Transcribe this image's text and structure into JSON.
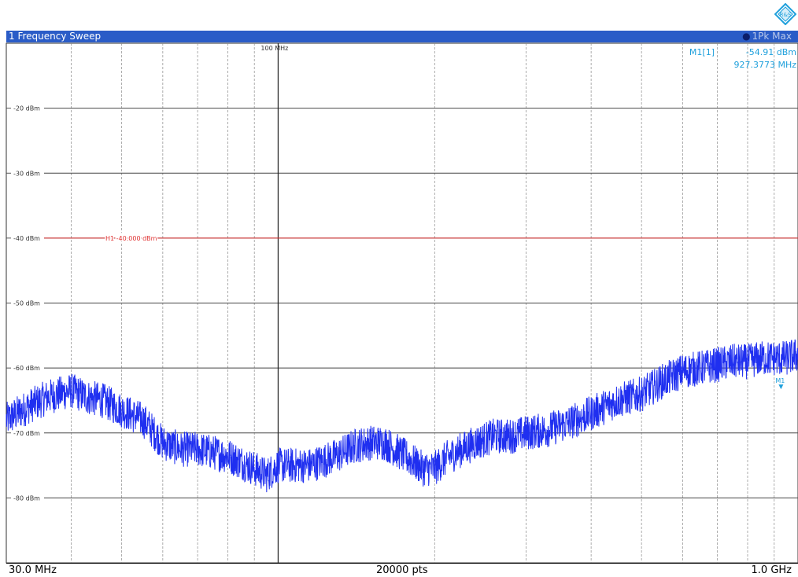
{
  "header": {
    "title": "1 Frequency Sweep",
    "trace_label": "1Pk Max",
    "logo_text": "R&S"
  },
  "marker_readout": {
    "name": "M1[1]",
    "level": "-54.91 dBm",
    "frequency": "927.3773 MHz"
  },
  "footer": {
    "start": "30.0 MHz",
    "points": "20000 pts",
    "stop": "1.0 GHz"
  },
  "colors": {
    "trace": "#1f2ff0",
    "marker": "#1fa0dc",
    "limit_line": "#e03030",
    "title_bar": "#2a5cc7",
    "grid": "#333333"
  },
  "chart_data": {
    "type": "line",
    "x_scale": "log",
    "x_unit": "MHz",
    "y_unit": "dBm",
    "xlim": [
      30,
      1000
    ],
    "ylim": [
      -90,
      -10
    ],
    "y_ticks": [
      -20,
      -30,
      -40,
      -50,
      -60,
      -70,
      -80
    ],
    "y_tick_labels": [
      "-20 dBm",
      "-30 dBm",
      "-40 dBm",
      "-50 dBm",
      "-60 dBm",
      "-70 dBm",
      "-80 dBm"
    ],
    "x_gridlines_mhz": [
      40,
      50,
      60,
      70,
      80,
      90,
      100,
      200,
      300,
      400,
      500,
      600,
      700,
      800,
      900
    ],
    "x_annotation": {
      "x": 100,
      "label": "100 MHz"
    },
    "limit_line": {
      "y": -40,
      "label": "H1 -40.000 dBm"
    },
    "marker": {
      "label": "M1",
      "x": 927.3773,
      "y": -54.91
    },
    "series": [
      {
        "x": [
          30,
          33,
          36,
          40,
          43,
          46,
          50,
          55,
          60,
          65,
          70,
          75,
          80,
          85,
          90,
          95,
          100,
          105,
          110,
          115,
          120,
          125,
          130,
          140,
          150,
          160,
          175,
          190,
          200,
          210,
          220,
          240,
          260,
          280,
          300,
          330,
          360,
          400,
          450,
          500,
          550,
          600,
          650,
          700,
          750,
          800,
          850,
          900,
          950,
          1000
        ],
        "y": [
          -68,
          -66,
          -64.5,
          -63.5,
          -64.5,
          -65,
          -66.5,
          -68,
          -71.5,
          -72.5,
          -72.5,
          -73,
          -73.5,
          -74.5,
          -75.5,
          -76.5,
          -75,
          -75,
          -75,
          -75,
          -74.5,
          -74,
          -73.5,
          -72,
          -71.5,
          -71.5,
          -73.5,
          -75.5,
          -75.5,
          -74,
          -73,
          -71.5,
          -70.5,
          -70.5,
          -70,
          -69.5,
          -68.5,
          -67,
          -65,
          -64,
          -62,
          -60.5,
          -60,
          -59.5,
          -59,
          -59,
          -58.5,
          -58.5,
          -58.5,
          -58
        ]
      }
    ]
  }
}
